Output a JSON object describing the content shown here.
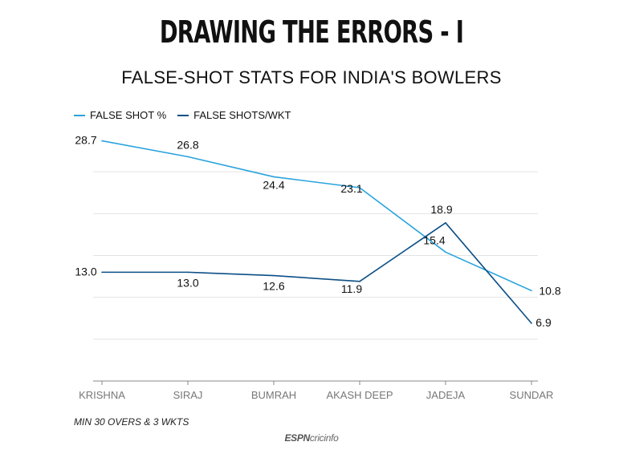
{
  "title": "DRAWING THE ERRORS - I",
  "subtitle": "FALSE-SHOT STATS FOR INDIA'S BOWLERS",
  "footnote": "MIN 30 OVERS & 3 WKTS",
  "brand": {
    "espn": "ESPN",
    "cricinfo": "cricinfo"
  },
  "colors": {
    "false_shot_pct": "#29a3dd",
    "false_shots_per_wkt": "#0b4f86",
    "grid": "#e3e3e3",
    "axis": "#888888"
  },
  "chart_data": {
    "type": "line",
    "categories": [
      "KRISHNA",
      "SIRAJ",
      "BUMRAH",
      "AKASH DEEP",
      "JADEJA",
      "SUNDAR"
    ],
    "series": [
      {
        "name": "FALSE SHOT %",
        "values": [
          28.7,
          26.8,
          24.4,
          23.1,
          15.4,
          10.8
        ],
        "labels": [
          "28.7",
          "26.8",
          "24.4",
          "23.1",
          "15.4",
          "10.8"
        ],
        "color": "#29a3dd"
      },
      {
        "name": "FALSE SHOTS/WKT",
        "values": [
          13.0,
          13.0,
          12.6,
          11.9,
          18.9,
          6.9
        ],
        "labels": [
          "13.0",
          "13.0",
          "12.6",
          "11.9",
          "18.9",
          "6.9"
        ],
        "color": "#0b4f86"
      }
    ],
    "ylim": [
      0,
      30
    ],
    "grid": true,
    "legend_position": "top-left",
    "xlabel": "",
    "ylabel": ""
  }
}
